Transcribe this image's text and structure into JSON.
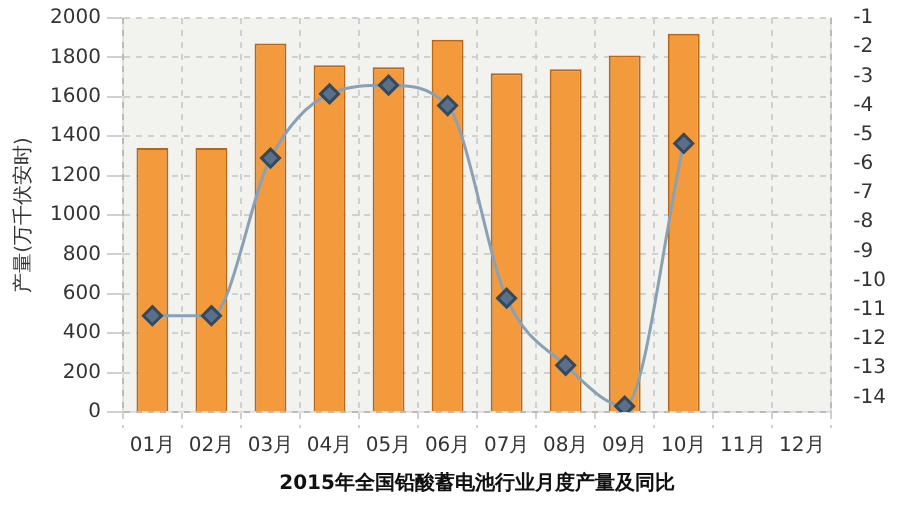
{
  "chart_data": {
    "type": "bar",
    "title": "2015年全国铅酸蓄电池行业月度产量及同比",
    "ylabel": "产量(万千伏安时)",
    "categories": [
      "01月",
      "02月",
      "03月",
      "04月",
      "05月",
      "06月",
      "07月",
      "08月",
      "09月",
      "10月",
      "11月",
      "12月"
    ],
    "series": [
      {
        "color": "#f39a3c",
        "values": [
          1340,
          1340,
          1870,
          1760,
          1750,
          1890,
          1720,
          1740,
          1810,
          1920,
          null,
          null
        ]
      },
      {
        "type": "line",
        "axis": "y2",
        "color": "#8aa0b4",
        "marker": "diamond",
        "values": [
          -11.2,
          -11.2,
          -5.8,
          -3.6,
          -3.3,
          -4.0,
          -10.6,
          -12.9,
          -14.3,
          -5.3,
          null,
          null
        ]
      }
    ],
    "ylim": [
      0,
      2000
    ],
    "yticks": [
      0,
      200,
      400,
      600,
      800,
      1000,
      1200,
      1400,
      1600,
      1800,
      2000
    ],
    "y2lim": [
      -14.5,
      -1
    ],
    "y2ticks": [
      -1,
      -2,
      -3,
      -4,
      -5,
      -6,
      -7,
      -8,
      -9,
      -10,
      -11,
      -12,
      -13,
      -14
    ],
    "grid": true,
    "legend": false
  }
}
